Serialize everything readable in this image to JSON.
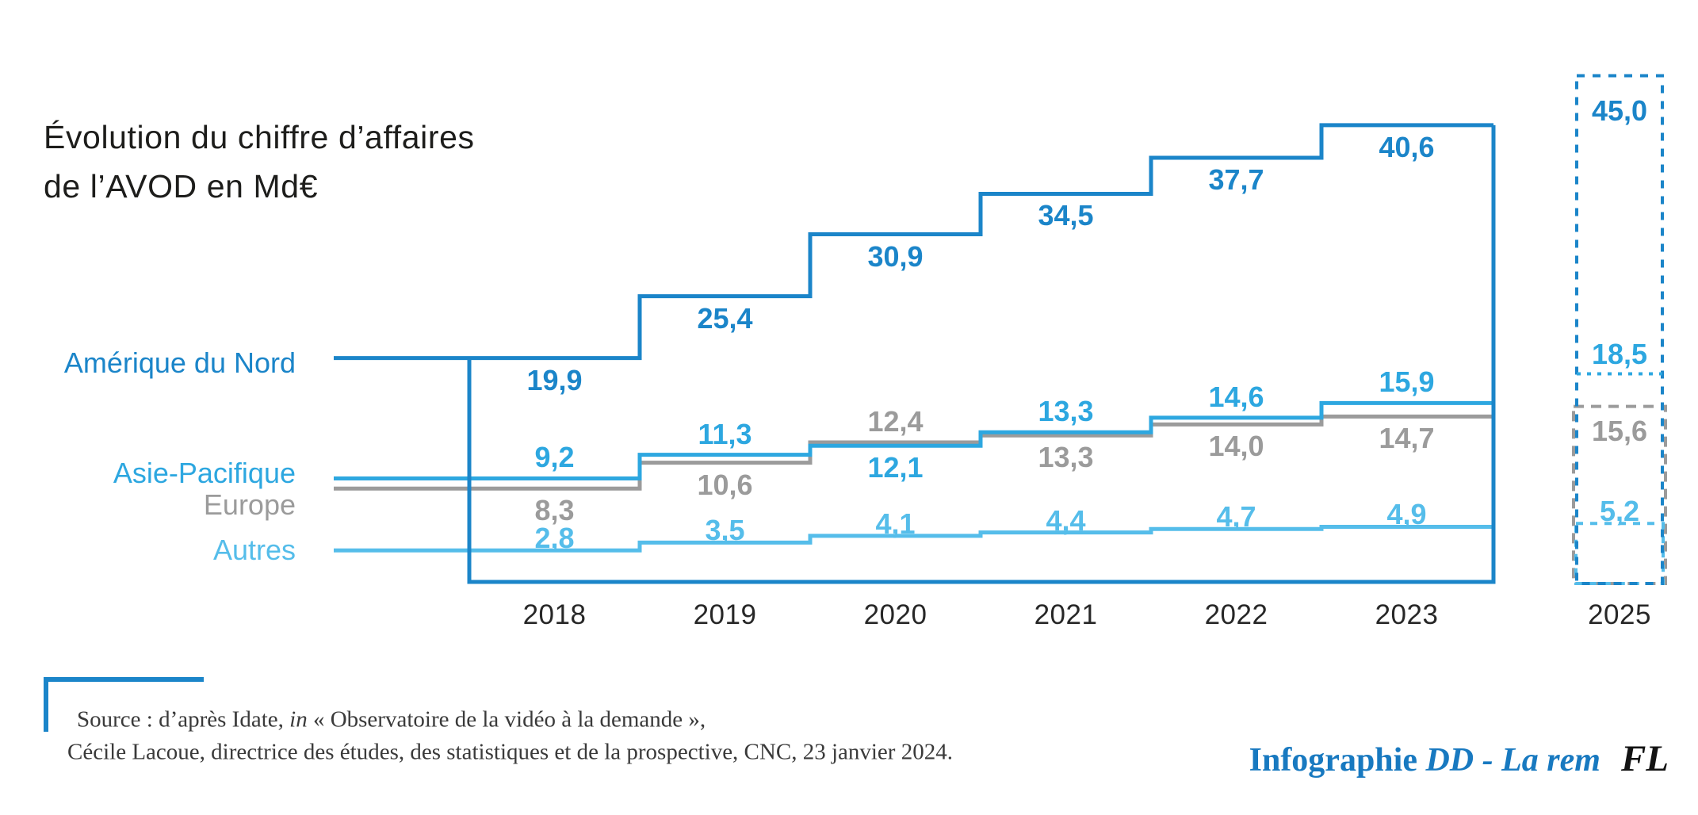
{
  "title": {
    "line1": "Évolution du chiffre d’affaires",
    "line2": "de l’AVOD en Md€"
  },
  "chart_data": {
    "type": "line",
    "subtype": "step",
    "title": "Évolution du chiffre d’affaires de l’AVOD en Md€",
    "unit": "Md€",
    "categories": [
      "2018",
      "2019",
      "2020",
      "2021",
      "2022",
      "2023"
    ],
    "forecast_category": "2025",
    "ylim": [
      0,
      47
    ],
    "grid": false,
    "legend_position": "left",
    "series": [
      {
        "name": "Amérique du Nord",
        "color": "#1b85c9",
        "values": [
          19.9,
          25.4,
          30.9,
          34.5,
          37.7,
          40.6
        ],
        "labels": [
          "19,9",
          "25,4",
          "30,9",
          "34,5",
          "37,7",
          "40,6"
        ],
        "label_side": [
          "below",
          "below",
          "below",
          "below",
          "below",
          "below"
        ],
        "forecast_value": 45.0,
        "forecast_label": "45,0",
        "forecast_label_side": "top"
      },
      {
        "name": "Asie-Pacifique",
        "color": "#2da7e0",
        "values": [
          9.2,
          11.3,
          12.1,
          13.3,
          14.6,
          15.9
        ],
        "labels": [
          "9,2",
          "11,3",
          "12,1",
          "13,3",
          "14,6",
          "15,9"
        ],
        "label_side": [
          "above",
          "above",
          "below",
          "above",
          "above",
          "above"
        ],
        "forecast_value": 18.5,
        "forecast_label": "18,5",
        "forecast_label_side": "above"
      },
      {
        "name": "Europe",
        "color": "#9b9b9b",
        "values": [
          8.3,
          10.6,
          12.4,
          13.3,
          14.0,
          14.7
        ],
        "labels": [
          "8,3",
          "10,6",
          "12,4",
          "13,3",
          "14,0",
          "14,7"
        ],
        "label_side": [
          "below",
          "below",
          "above",
          "below",
          "below",
          "below"
        ],
        "forecast_value": 15.6,
        "forecast_label": "15,6",
        "forecast_label_side": "below"
      },
      {
        "name": "Autres",
        "color": "#55bdea",
        "values": [
          2.8,
          3.5,
          4.1,
          4.4,
          4.7,
          4.9
        ],
        "labels": [
          "2,8",
          "3,5",
          "4,1",
          "4,4",
          "4,7",
          "4,9"
        ],
        "label_side": [
          "above",
          "above",
          "above",
          "above",
          "above",
          "above"
        ],
        "forecast_value": 5.2,
        "forecast_label": "5,2",
        "forecast_label_side": "above"
      }
    ]
  },
  "source": {
    "prefix": "Source : d’après Idate, ",
    "in_word": "in",
    "suffix": " « Observatoire de la vidéo à la demande »,",
    "line2": "Cécile Lacoue, directrice des études, des statistiques et de la prospective, CNC, 23 janvier 2024."
  },
  "credit": {
    "label": "Infographie ",
    "author": "DD - La rem",
    "logo": "FL"
  }
}
